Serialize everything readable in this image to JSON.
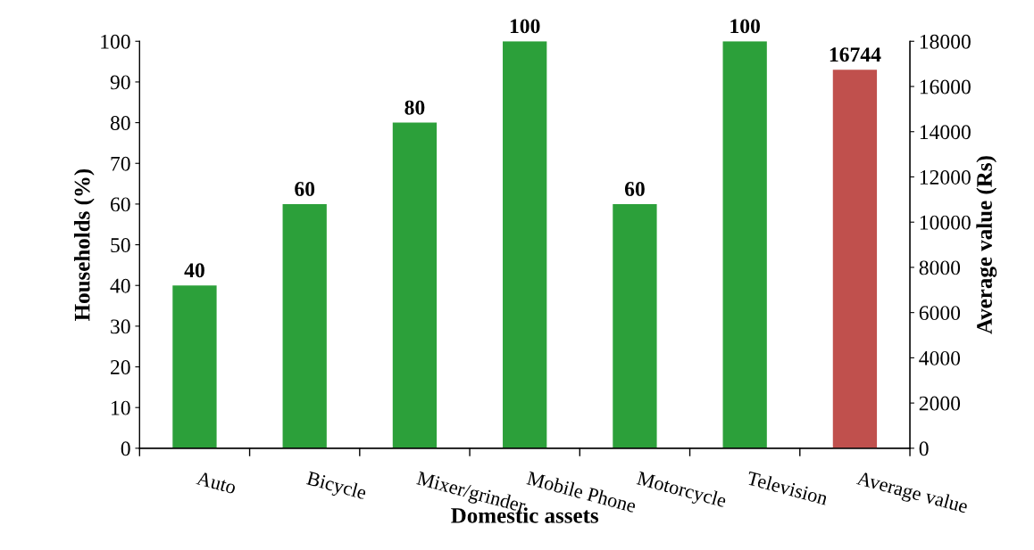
{
  "chart_data": {
    "type": "bar",
    "xlabel": "Domestic assets",
    "ylabel": "Households (%)",
    "y2label": "Average value (Rs)",
    "categories": [
      "Auto",
      "Bicycle",
      "Mixer/grinder",
      "Mobile Phone",
      "Motorcycle",
      "Television",
      "Average value"
    ],
    "series": [
      {
        "color": "#2ca03a",
        "values": [
          40,
          60,
          80,
          100,
          60,
          100,
          null
        ]
      },
      {
        "color": "#c0504d",
        "axis": "y2",
        "values": [
          null,
          null,
          null,
          null,
          null,
          null,
          16744
        ]
      }
    ],
    "ylim": [
      0,
      100
    ],
    "yticks": [
      0,
      10,
      20,
      30,
      40,
      50,
      60,
      70,
      80,
      90,
      100
    ],
    "y2lim": [
      0,
      18000
    ],
    "y2ticks": [
      0,
      2000,
      4000,
      6000,
      8000,
      10000,
      12000,
      14000,
      16000,
      18000
    ],
    "data_labels": true,
    "grid": false,
    "legend": false
  }
}
